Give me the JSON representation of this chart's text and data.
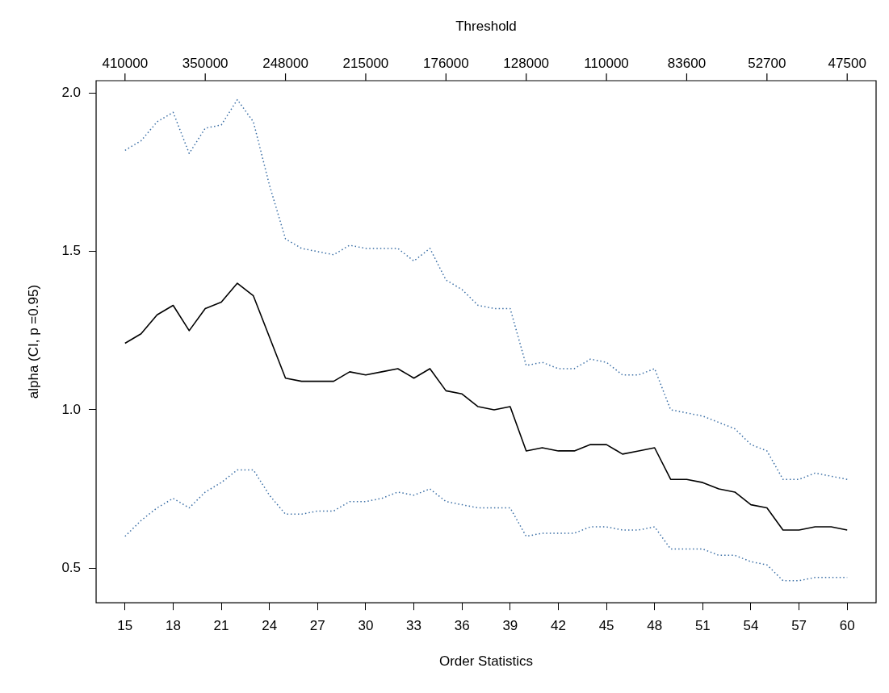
{
  "chart_data": {
    "type": "line",
    "xlabel": "Order Statistics",
    "ylabel": "alpha (CI, p =0.95)",
    "x2label": "Threshold",
    "x": [
      15,
      16,
      17,
      18,
      19,
      20,
      21,
      22,
      23,
      24,
      25,
      26,
      27,
      28,
      29,
      30,
      31,
      32,
      33,
      34,
      35,
      36,
      37,
      38,
      39,
      40,
      41,
      42,
      43,
      44,
      45,
      46,
      47,
      48,
      49,
      50,
      51,
      52,
      53,
      54,
      55,
      56,
      57,
      58,
      59,
      60
    ],
    "series": [
      {
        "color": "#000000",
        "line_style": "solid",
        "values": [
          1.21,
          1.24,
          1.3,
          1.33,
          1.25,
          1.32,
          1.34,
          1.4,
          1.36,
          1.23,
          1.1,
          1.09,
          1.09,
          1.09,
          1.12,
          1.11,
          1.12,
          1.13,
          1.1,
          1.13,
          1.06,
          1.05,
          1.01,
          1.0,
          1.01,
          0.87,
          0.88,
          0.87,
          0.87,
          0.89,
          0.89,
          0.86,
          0.87,
          0.88,
          0.78,
          0.78,
          0.77,
          0.75,
          0.74,
          0.7,
          0.69,
          0.62,
          0.62,
          0.63,
          0.63,
          0.62
        ]
      },
      {
        "color": "#3a6ea5",
        "line_style": "dotted",
        "values": [
          1.82,
          1.85,
          1.91,
          1.94,
          1.81,
          1.89,
          1.9,
          1.98,
          1.91,
          1.71,
          1.54,
          1.51,
          1.5,
          1.49,
          1.52,
          1.51,
          1.51,
          1.51,
          1.47,
          1.51,
          1.41,
          1.38,
          1.33,
          1.32,
          1.32,
          1.14,
          1.15,
          1.13,
          1.13,
          1.16,
          1.15,
          1.11,
          1.11,
          1.13,
          1.0,
          0.99,
          0.98,
          0.96,
          0.94,
          0.89,
          0.87,
          0.78,
          0.78,
          0.8,
          0.79,
          0.78
        ]
      },
      {
        "color": "#3a6ea5",
        "line_style": "dotted",
        "values": [
          0.6,
          0.65,
          0.69,
          0.72,
          0.69,
          0.74,
          0.77,
          0.81,
          0.81,
          0.73,
          0.67,
          0.67,
          0.68,
          0.68,
          0.71,
          0.71,
          0.72,
          0.74,
          0.73,
          0.75,
          0.71,
          0.7,
          0.69,
          0.69,
          0.69,
          0.6,
          0.61,
          0.61,
          0.61,
          0.63,
          0.63,
          0.62,
          0.62,
          0.63,
          0.56,
          0.56,
          0.56,
          0.54,
          0.54,
          0.52,
          0.51,
          0.46,
          0.46,
          0.47,
          0.47,
          0.47
        ]
      }
    ],
    "xlim": [
      13.2,
      61.8
    ],
    "xticks": [
      15,
      18,
      21,
      24,
      27,
      30,
      33,
      36,
      39,
      42,
      45,
      48,
      51,
      54,
      57,
      60
    ],
    "annotations": [
      {
        "text": "410000",
        "x": 15
      },
      {
        "text": "350000",
        "x": 20
      },
      {
        "text": "248000",
        "x": 25
      },
      {
        "text": "215000",
        "x": 30
      },
      {
        "text": "176000",
        "x": 35
      },
      {
        "text": "128000",
        "x": 40
      },
      {
        "text": "110000",
        "x": 45
      },
      {
        "text": "83600",
        "x": 50
      },
      {
        "text": "52700",
        "x": 55
      },
      {
        "text": "47500",
        "x": 60
      }
    ],
    "ylim": [
      0.39,
      2.04
    ],
    "yticks": [
      {
        "value": 0.5,
        "label": "0.5"
      },
      {
        "value": 1,
        "label": "1.0"
      },
      {
        "value": 1.5,
        "label": "1.5"
      },
      {
        "value": 2,
        "label": "2.0"
      }
    ],
    "grid": false,
    "legend": false,
    "marker": "none"
  }
}
